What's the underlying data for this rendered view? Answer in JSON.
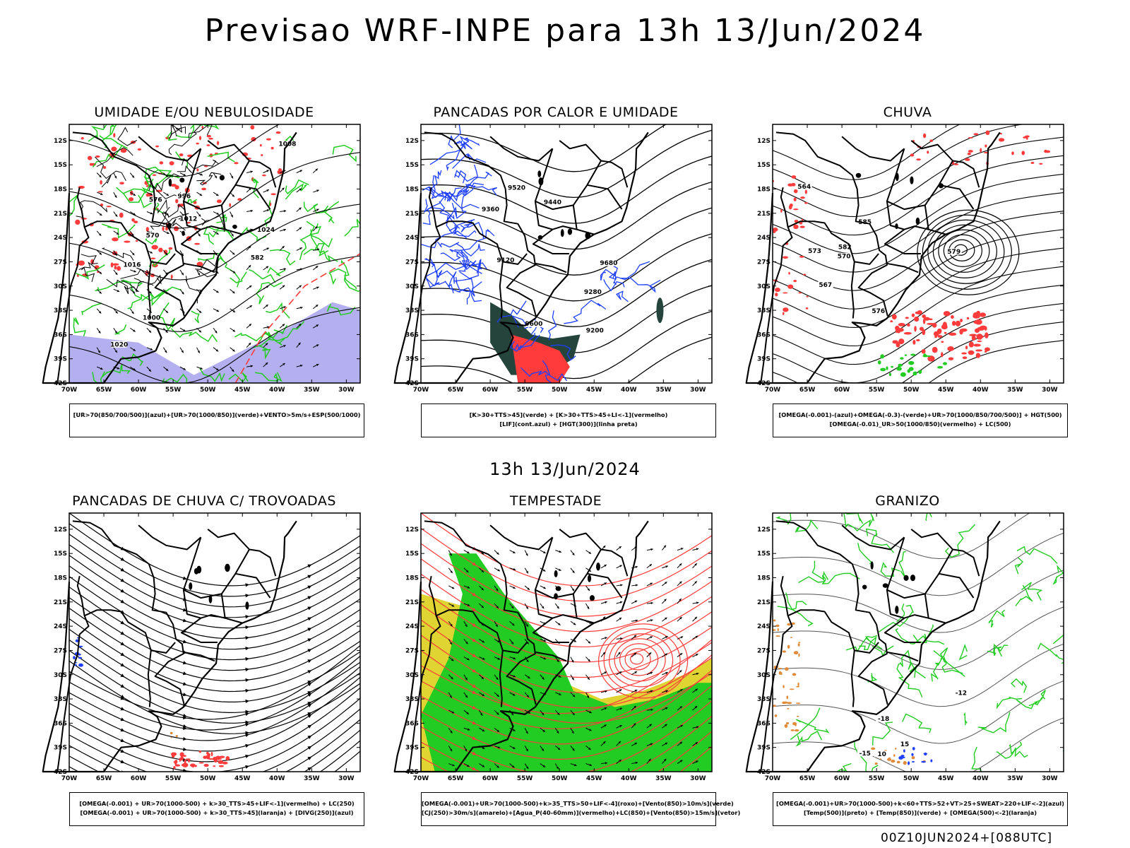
{
  "title": "Previsao WRF-INPE  para 13h 13/Jun/2024",
  "middle_time": "13h 13/Jun/2024",
  "footer": "00Z10JUN2024+[088UTC]",
  "colors": {
    "blue": "#1f3fff",
    "green": "#22cc22",
    "red": "#ff3b3b",
    "dark": "#24443c",
    "yellow": "#e0d432",
    "lavender": "#b4b0f0",
    "orange": "#e08a3a"
  },
  "chart_data": [
    {
      "type": "map",
      "title": "UMIDADE E/OU NEBULOSIDADE",
      "legend": [
        "[UR>70(850/700/500)](azul)+[UR>70(1000/850)](verde)+VENTO>5m/s+ESP(500/1000)"
      ],
      "xlim": [
        -70,
        -28
      ],
      "ylim": [
        -42,
        -10
      ],
      "x_ticks": [
        "70W",
        "65W",
        "60W",
        "55W",
        "50W",
        "45W",
        "40W",
        "35W",
        "30W"
      ],
      "y_ticks": [
        "12S",
        "15S",
        "18S",
        "21S",
        "24S",
        "27S",
        "30S",
        "33S",
        "36S",
        "39S",
        "42S"
      ],
      "contour_labels": [
        "1012",
        "1016",
        "1020",
        "1024",
        "1008",
        "1000",
        "996",
        "570",
        "576",
        "582"
      ]
    },
    {
      "type": "map",
      "title": "PANCADAS POR CALOR E UMIDADE",
      "legend": [
        "[K>30+TTS>45](verde) + [K>30+TTS>45+LI<-1](vermelho)",
        "[LIF](cont.azul) + [HGT(300)](linha preta)"
      ],
      "xlim": [
        -70,
        -28
      ],
      "ylim": [
        -42,
        -10
      ],
      "x_ticks": [
        "70W",
        "65W",
        "60W",
        "55W",
        "50W",
        "45W",
        "40W",
        "35W",
        "30W"
      ],
      "y_ticks": [
        "12S",
        "15S",
        "18S",
        "21S",
        "24S",
        "27S",
        "30S",
        "33S",
        "36S",
        "39S",
        "42S"
      ],
      "contour_labels": [
        "9680",
        "9600",
        "9520",
        "9440",
        "9360",
        "9280",
        "9200",
        "9120"
      ]
    },
    {
      "type": "map",
      "title": "CHUVA",
      "legend": [
        "[OMEGA(-0.001)-(azul)+OMEGA(-0.3)-(verde)+UR>70(1000/850/700/500)] + HGT(500)",
        "[OMEGA(-0.01)_UR>50(1000/850)(vermelho) + LC(500)"
      ],
      "xlim": [
        -70,
        -28
      ],
      "ylim": [
        -42,
        -10
      ],
      "x_ticks": [
        "70W",
        "65W",
        "60W",
        "55W",
        "50W",
        "45W",
        "40W",
        "35W",
        "30W"
      ],
      "y_ticks": [
        "12S",
        "15S",
        "18S",
        "21S",
        "24S",
        "27S",
        "30S",
        "33S",
        "36S",
        "39S",
        "42S"
      ],
      "contour_labels": [
        "585",
        "582",
        "579",
        "576",
        "573",
        "570",
        "567",
        "564"
      ]
    },
    {
      "type": "map",
      "title": "PANCADAS DE CHUVA C/ TROVOADAS",
      "legend": [
        "[OMEGA(-0.001) + UR>70(1000-500) + k>30_TTS>45+LIF<-1](vermelho) + LC(250)",
        "[OMEGA(-0.001) + UR>70(1000-500) + k>30_TTS>45](laranja) + [DIVG(250)](azul)"
      ],
      "xlim": [
        -70,
        -28
      ],
      "ylim": [
        -42,
        -10
      ],
      "x_ticks": [
        "70W",
        "65W",
        "60W",
        "55W",
        "50W",
        "45W",
        "40W",
        "35W",
        "30W"
      ],
      "y_ticks": [
        "12S",
        "15S",
        "18S",
        "21S",
        "24S",
        "27S",
        "30S",
        "33S",
        "36S",
        "39S",
        "42S"
      ]
    },
    {
      "type": "map",
      "title": "TEMPESTADE",
      "legend": [
        "[OMEGA(-0.001)+UR>70(1000-500)+k>35_TTS>50+LIF<-4](roxo)+[Vento(850)>10m/s](verde)",
        "[CJ(250)>30m/s](amarelo)+[Agua_P(40-60mm)](vermelho)+LC(850)+[Vento(850)>15m/s](vetor)"
      ],
      "xlim": [
        -70,
        -28
      ],
      "ylim": [
        -42,
        -10
      ],
      "x_ticks": [
        "70W",
        "65W",
        "60W",
        "55W",
        "50W",
        "45W",
        "40W",
        "35W",
        "30W"
      ],
      "y_ticks": [
        "12S",
        "15S",
        "18S",
        "21S",
        "24S",
        "27S",
        "30S",
        "33S",
        "36S",
        "39S",
        "42S"
      ]
    },
    {
      "type": "map",
      "title": "GRANIZO",
      "legend": [
        "[OMEGA(-0.001)+UR>70(1000-500)+k<60+TTS>52+VT>25+SWEAT>220+LIF<-2](azul)",
        "[Temp(500)](preto) + [Temp(850)](verde) + [OMEGA(500)<-2](laranja)"
      ],
      "xlim": [
        -70,
        -28
      ],
      "ylim": [
        -42,
        -10
      ],
      "x_ticks": [
        "70W",
        "65W",
        "60W",
        "55W",
        "50W",
        "45W",
        "40W",
        "35W",
        "30W"
      ],
      "y_ticks": [
        "12S",
        "15S",
        "18S",
        "21S",
        "24S",
        "27S",
        "30S",
        "33S",
        "36S",
        "39S",
        "42S"
      ],
      "contour_labels": [
        "-12",
        "-15",
        "-18",
        "15",
        "10"
      ]
    }
  ]
}
